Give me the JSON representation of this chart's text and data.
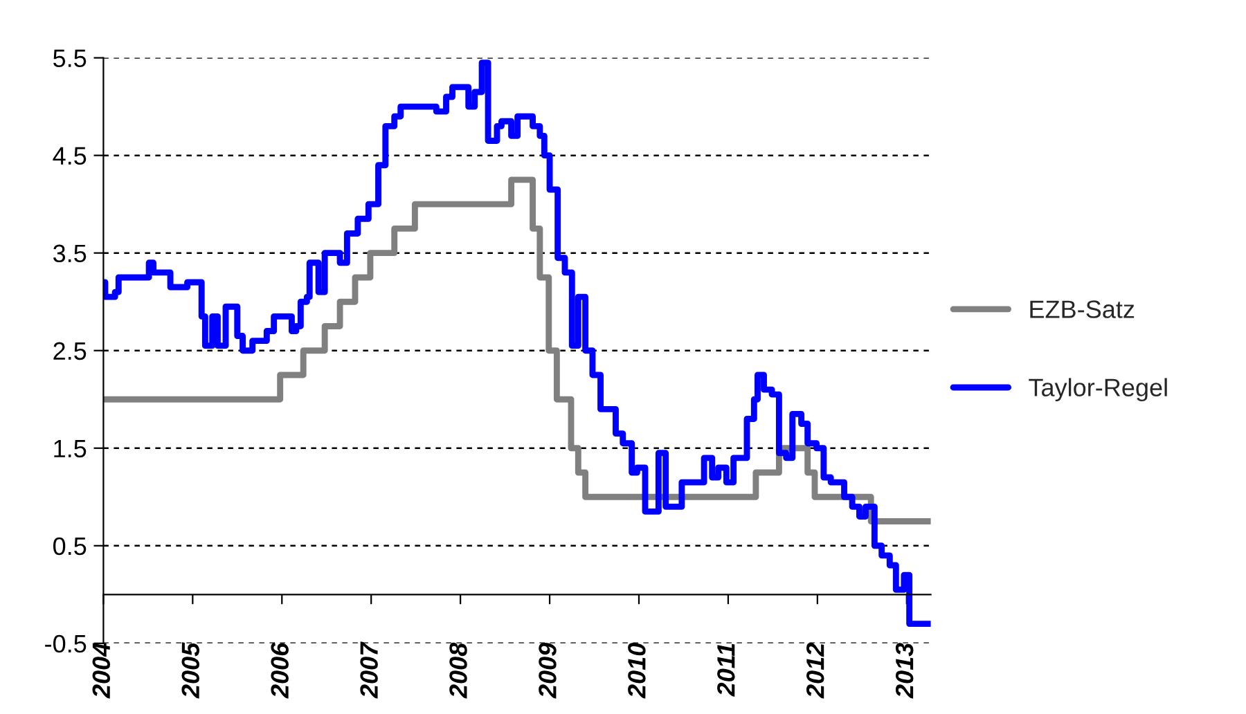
{
  "chart_data": {
    "type": "step",
    "xlim": [
      2004,
      2013.27
    ],
    "xticks": [
      2004,
      2005,
      2006,
      2007,
      2008,
      2009,
      2010,
      2011,
      2012,
      2013
    ],
    "ylim": [
      -0.5,
      5.5
    ],
    "yticks": [
      -0.5,
      0.5,
      1.5,
      2.5,
      3.5,
      4.5,
      5.5
    ],
    "grid": "y",
    "legend": "right",
    "series": [
      {
        "name": "EZB-Satz",
        "color": "#808080",
        "x": [
          2004.0,
          2005.98,
          2006.24,
          2006.48,
          2006.65,
          2006.82,
          2006.99,
          2007.26,
          2007.49,
          2008.57,
          2008.81,
          2008.89,
          2008.99,
          2009.08,
          2009.24,
          2009.32,
          2009.4,
          2011.31,
          2011.57,
          2011.89,
          2011.97,
          2012.6,
          2013.27
        ],
        "values": [
          2.0,
          2.25,
          2.5,
          2.75,
          3.0,
          3.25,
          3.5,
          3.75,
          4.0,
          4.25,
          3.75,
          3.25,
          2.5,
          2.0,
          1.5,
          1.25,
          1.0,
          1.25,
          1.5,
          1.25,
          1.0,
          0.75,
          0.75
        ]
      },
      {
        "name": "Taylor-Regel",
        "color": "#0000ff",
        "x": [
          2004.0,
          2004.02,
          2004.13,
          2004.17,
          2004.51,
          2004.56,
          2004.75,
          2004.94,
          2005.1,
          2005.14,
          2005.22,
          2005.28,
          2005.37,
          2005.5,
          2005.56,
          2005.67,
          2005.83,
          2005.91,
          2006.11,
          2006.16,
          2006.21,
          2006.28,
          2006.31,
          2006.41,
          2006.48,
          2006.65,
          2006.73,
          2006.85,
          2006.97,
          2007.08,
          2007.16,
          2007.26,
          2007.33,
          2007.73,
          2007.84,
          2007.91,
          2008.09,
          2008.16,
          2008.24,
          2008.31,
          2008.41,
          2008.46,
          2008.57,
          2008.64,
          2008.81,
          2008.89,
          2008.94,
          2009.0,
          2009.09,
          2009.17,
          2009.25,
          2009.32,
          2009.4,
          2009.48,
          2009.57,
          2009.74,
          2009.82,
          2009.92,
          2009.98,
          2010.07,
          2010.22,
          2010.3,
          2010.48,
          2010.73,
          2010.82,
          2010.89,
          2010.98,
          2011.06,
          2011.21,
          2011.29,
          2011.33,
          2011.4,
          2011.49,
          2011.57,
          2011.65,
          2011.72,
          2011.82,
          2011.89,
          2011.99,
          2012.07,
          2012.15,
          2012.3,
          2012.39,
          2012.47,
          2012.54,
          2012.64,
          2012.72,
          2012.81,
          2012.88,
          2012.97,
          2013.03,
          2013.27
        ],
        "values": [
          3.2,
          3.05,
          3.1,
          3.25,
          3.4,
          3.3,
          3.15,
          3.2,
          2.85,
          2.55,
          2.85,
          2.55,
          2.95,
          2.65,
          2.5,
          2.6,
          2.7,
          2.85,
          2.7,
          2.75,
          3.0,
          3.05,
          3.4,
          3.1,
          3.5,
          3.4,
          3.7,
          3.85,
          4.0,
          4.4,
          4.8,
          4.9,
          5.0,
          4.95,
          5.1,
          5.2,
          5.0,
          5.15,
          5.45,
          4.65,
          4.8,
          4.85,
          4.7,
          4.9,
          4.8,
          4.7,
          4.5,
          4.15,
          3.45,
          3.3,
          2.55,
          3.05,
          2.5,
          2.25,
          1.9,
          1.65,
          1.55,
          1.25,
          1.3,
          0.85,
          1.45,
          0.9,
          1.15,
          1.4,
          1.2,
          1.3,
          1.15,
          1.4,
          1.8,
          2.0,
          2.25,
          2.1,
          2.05,
          1.45,
          1.4,
          1.85,
          1.75,
          1.55,
          1.5,
          1.2,
          1.15,
          1.0,
          0.9,
          0.8,
          0.9,
          0.5,
          0.4,
          0.3,
          0.05,
          0.2,
          -0.3,
          -0.3
        ]
      }
    ]
  }
}
